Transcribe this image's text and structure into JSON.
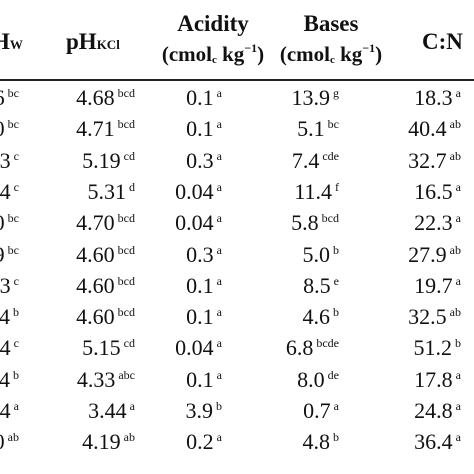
{
  "table": {
    "headers": {
      "phw": {
        "main": "H",
        "sub": "W"
      },
      "phkcl": {
        "main": "pH",
        "sub": "KCl"
      },
      "acidity": {
        "title": "Acidity",
        "unit_open": "(cmol",
        "unit_sub": "c",
        "unit_mid": " kg",
        "unit_sup": "−1",
        "unit_close": ")"
      },
      "bases": {
        "title": "Bases",
        "unit_open": "(cmol",
        "unit_sub": "c",
        "unit_mid": " kg",
        "unit_sup": "−1",
        "unit_close": ")"
      },
      "cn": {
        "main": "C:N"
      }
    },
    "rows": [
      {
        "phw": "6",
        "phw_l": "bc",
        "phkcl": "4.68",
        "phkcl_l": "bcd",
        "acidity": "0.1",
        "acidity_l": "a",
        "bases": "13.9",
        "bases_l": "g",
        "cn": "18.3",
        "cn_l": "a"
      },
      {
        "phw": "0",
        "phw_l": "bc",
        "phkcl": "4.71",
        "phkcl_l": "bcd",
        "acidity": "0.1",
        "acidity_l": "a",
        "bases": "5.1",
        "bases_l": "bc",
        "cn": "40.4",
        "cn_l": "ab"
      },
      {
        "phw": "3",
        "phw_l": "c",
        "phkcl": "5.19",
        "phkcl_l": "cd",
        "acidity": "0.3",
        "acidity_l": "a",
        "bases": "7.4",
        "bases_l": "cde",
        "cn": "32.7",
        "cn_l": "ab"
      },
      {
        "phw": "4",
        "phw_l": "c",
        "phkcl": "5.31",
        "phkcl_l": "d",
        "acidity": "0.04",
        "acidity_l": "a",
        "bases": "11.4",
        "bases_l": "f",
        "cn": "16.5",
        "cn_l": "a"
      },
      {
        "phw": "0",
        "phw_l": "bc",
        "phkcl": "4.70",
        "phkcl_l": "bcd",
        "acidity": "0.04",
        "acidity_l": "a",
        "bases": "5.8",
        "bases_l": "bcd",
        "cn": "22.3",
        "cn_l": "a"
      },
      {
        "phw": "9",
        "phw_l": "bc",
        "phkcl": "4.60",
        "phkcl_l": "bcd",
        "acidity": "0.3",
        "acidity_l": "a",
        "bases": "5.0",
        "bases_l": "b",
        "cn": "27.9",
        "cn_l": "ab"
      },
      {
        "phw": "3",
        "phw_l": "c",
        "phkcl": "4.60",
        "phkcl_l": "bcd",
        "acidity": "0.1",
        "acidity_l": "a",
        "bases": "8.5",
        "bases_l": "e",
        "cn": "19.7",
        "cn_l": "a"
      },
      {
        "phw": "4",
        "phw_l": "b",
        "phkcl": "4.60",
        "phkcl_l": "bcd",
        "acidity": "0.1",
        "acidity_l": "a",
        "bases": "4.6",
        "bases_l": "b",
        "cn": "32.5",
        "cn_l": "ab"
      },
      {
        "phw": "4",
        "phw_l": "c",
        "phkcl": "5.15",
        "phkcl_l": "cd",
        "acidity": "0.04",
        "acidity_l": "a",
        "bases": "6.8",
        "bases_l": "bcde",
        "cn": "51.2",
        "cn_l": "b"
      },
      {
        "phw": "4",
        "phw_l": "b",
        "phkcl": "4.33",
        "phkcl_l": "abc",
        "acidity": "0.1",
        "acidity_l": "a",
        "bases": "8.0",
        "bases_l": "de",
        "cn": "17.8",
        "cn_l": "a"
      },
      {
        "phw": "4",
        "phw_l": "a",
        "phkcl": "3.44",
        "phkcl_l": "a",
        "acidity": "3.9",
        "acidity_l": "b",
        "bases": "0.7",
        "bases_l": "a",
        "cn": "24.8",
        "cn_l": "a"
      },
      {
        "phw": "0",
        "phw_l": "ab",
        "phkcl": "4.19",
        "phkcl_l": "ab",
        "acidity": "0.2",
        "acidity_l": "a",
        "bases": "4.8",
        "bases_l": "b",
        "cn": "36.4",
        "cn_l": "a"
      }
    ]
  }
}
